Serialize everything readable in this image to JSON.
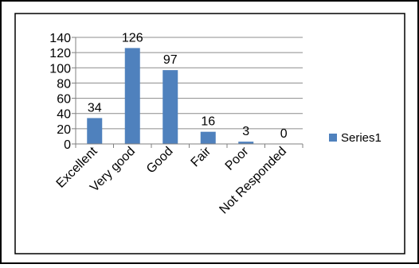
{
  "chart_data": {
    "type": "bar",
    "categories": [
      "Excellent",
      "Very good",
      "Good",
      "Fair",
      "Poor",
      "Not Responded"
    ],
    "series": [
      {
        "name": "Series1",
        "values": [
          34,
          126,
          97,
          16,
          3,
          0
        ],
        "color": "#4f81bd"
      }
    ],
    "data_labels": [
      "34",
      "126",
      "97",
      "16",
      "3",
      "0"
    ],
    "y_ticks": [
      "0",
      "20",
      "40",
      "60",
      "80",
      "100",
      "120",
      "140"
    ],
    "ylim": [
      0,
      140
    ],
    "grid": true,
    "legend_position": "right",
    "title": "",
    "xlabel": "",
    "ylabel": ""
  }
}
